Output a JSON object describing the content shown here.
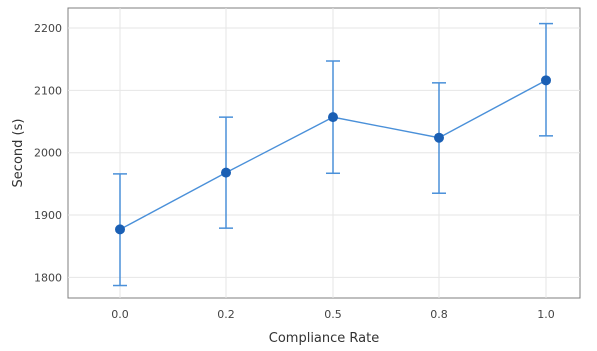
{
  "chart_data": {
    "type": "line",
    "title": "",
    "xlabel": "Compliance Rate",
    "ylabel": "Second (s)",
    "categories": [
      "0.0",
      "0.2",
      "0.5",
      "0.8",
      "1.0"
    ],
    "series": [
      {
        "values": [
          1877,
          1968,
          2057,
          2024,
          2116
        ],
        "err_low": [
          1787,
          1879,
          1967,
          1935,
          2027
        ],
        "err_high": [
          1966,
          2057,
          2147,
          2112,
          2207
        ]
      }
    ],
    "yticks": [
      1800,
      1900,
      2000,
      2100,
      2200
    ],
    "ylim": [
      1767,
      2232
    ],
    "grid": true,
    "legend": "none",
    "colors": {
      "series": "#1a5fb4",
      "line": "#4a90d9",
      "grid": "#e6e6e6",
      "frame": "#7f7f7f"
    }
  }
}
